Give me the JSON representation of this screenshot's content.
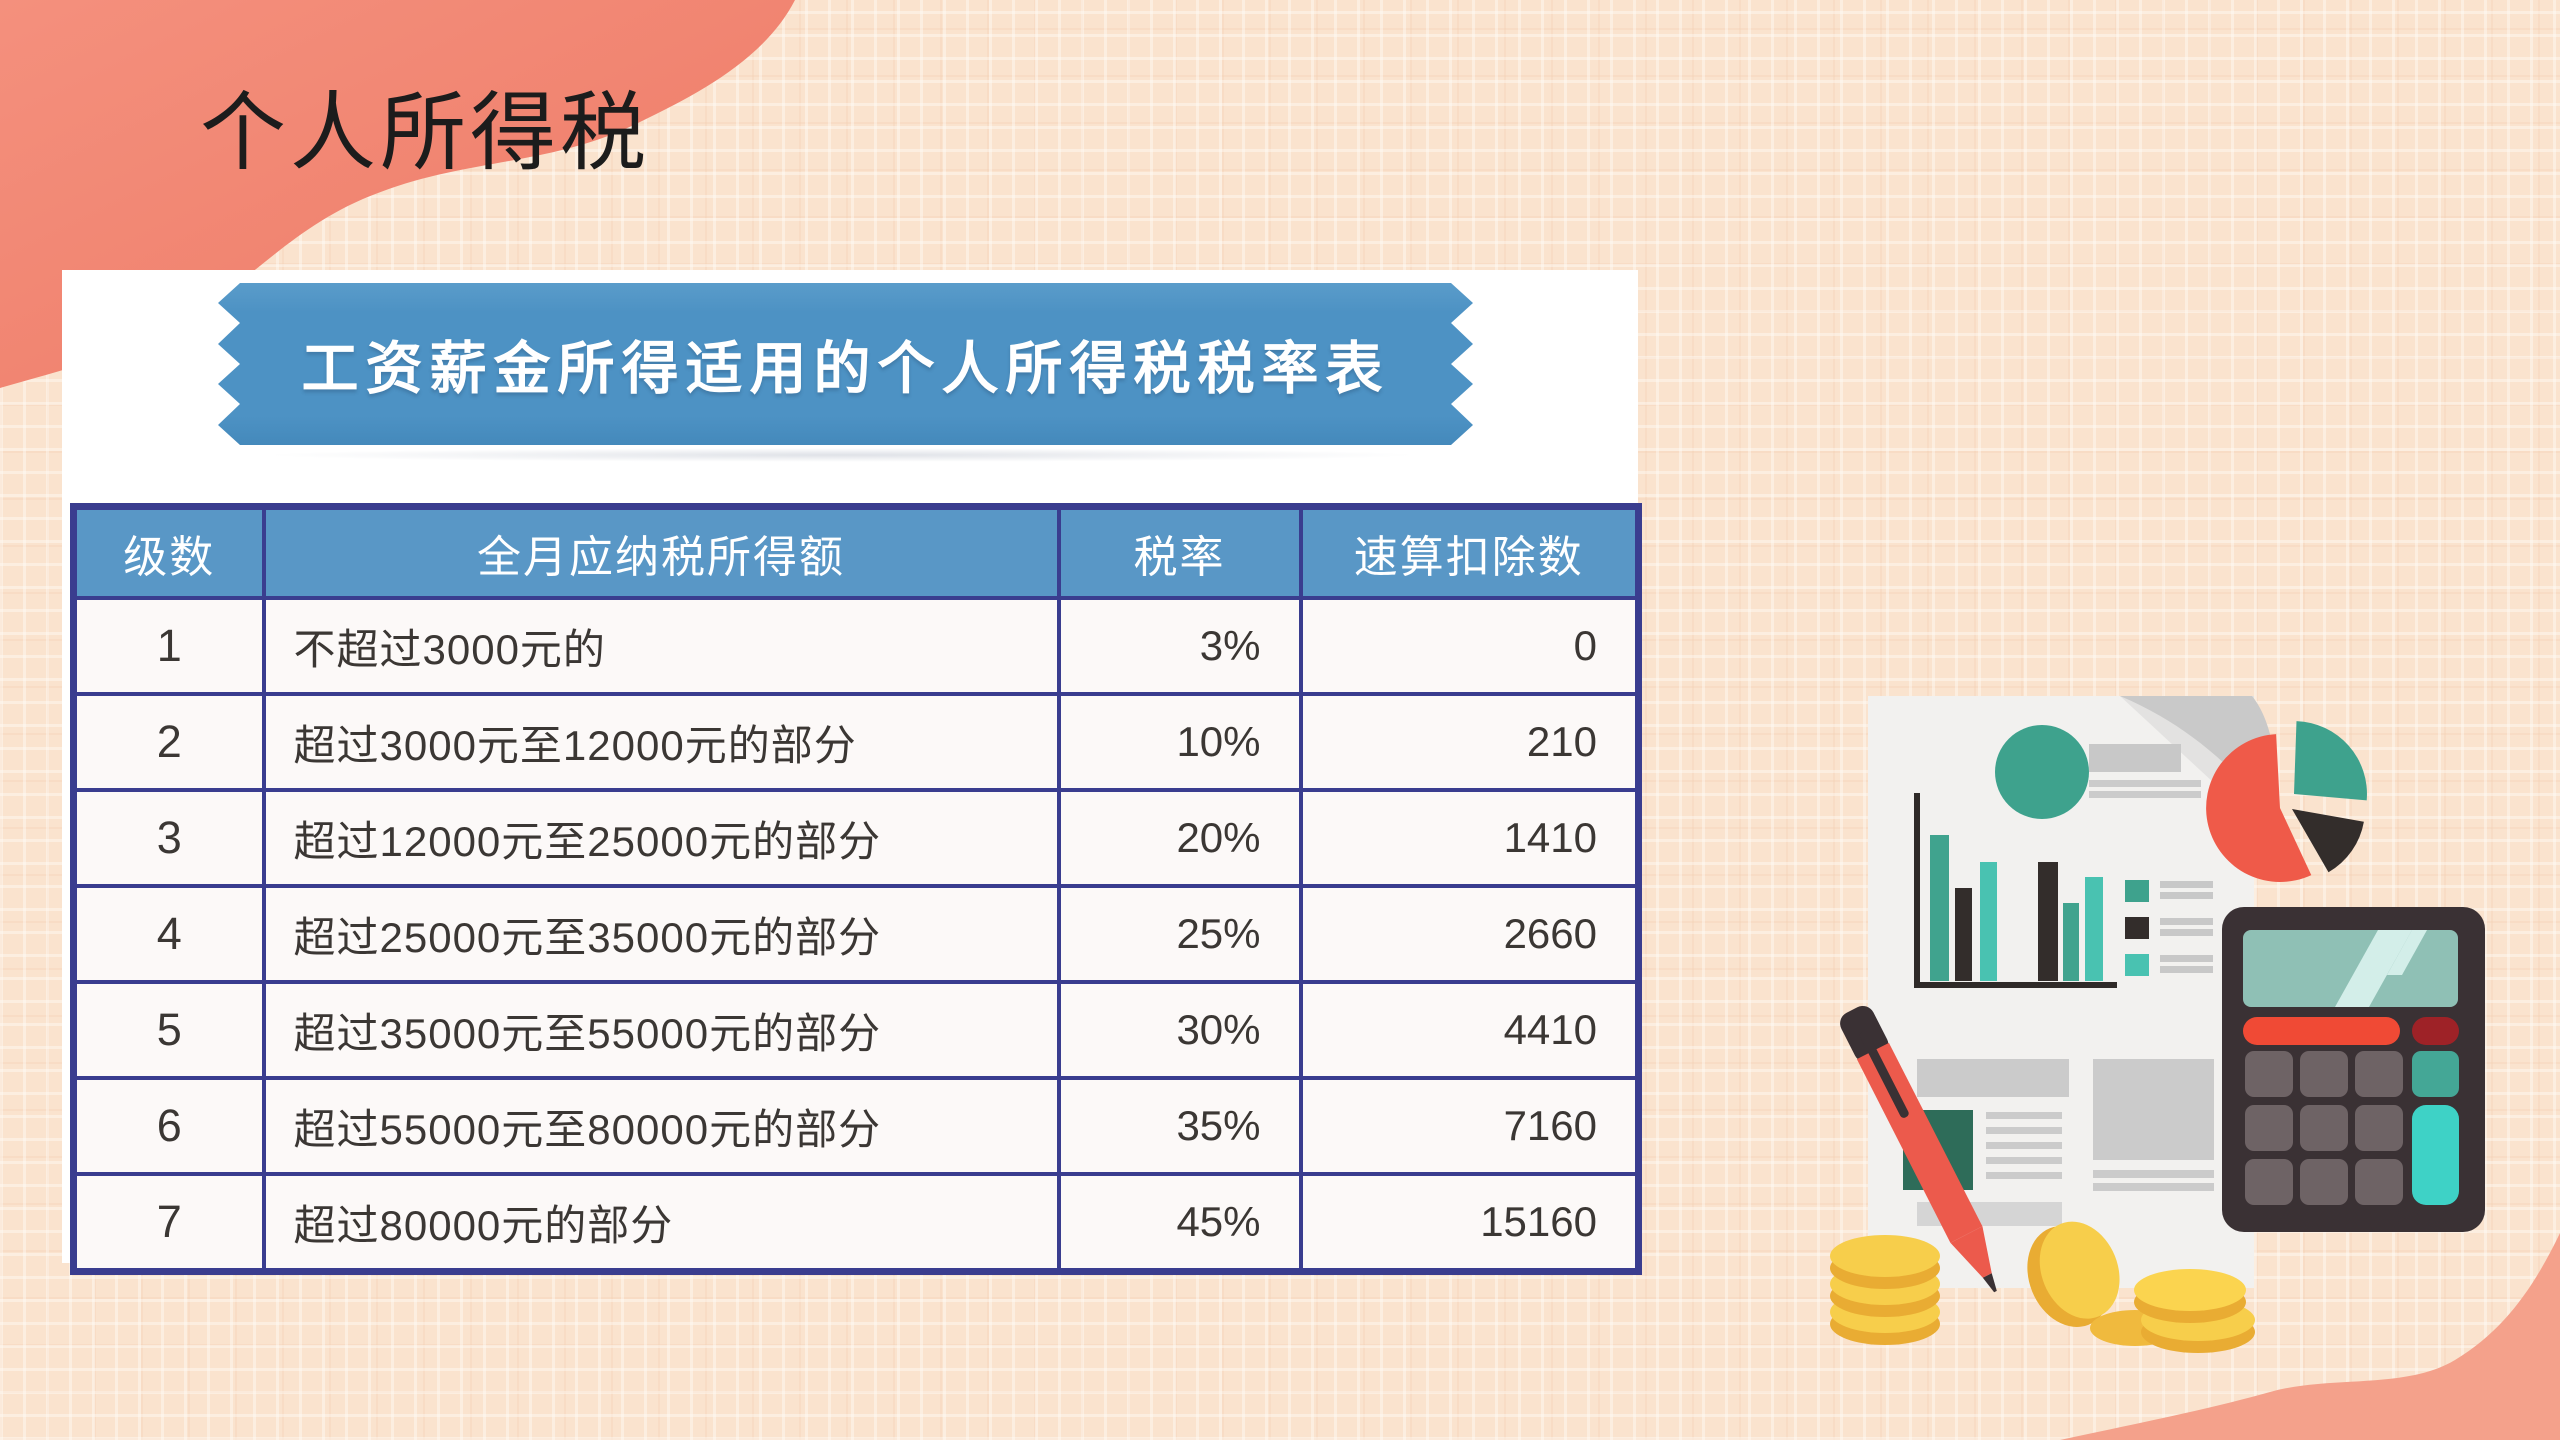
{
  "slide": {
    "title": "个人所得税"
  },
  "panel": {
    "banner_title": "工资薪金所得适用的个人所得税税率表",
    "table": {
      "columns": [
        "级数",
        "全月应纳税所得额",
        "税率",
        "速算扣除数"
      ],
      "rows": [
        [
          "1",
          "不超过3000元的",
          "3%",
          "0"
        ],
        [
          "2",
          "超过3000元至12000元的部分",
          "10%",
          "210"
        ],
        [
          "3",
          "超过12000元至25000元的部分",
          "20%",
          "1410"
        ],
        [
          "4",
          "超过25000元至35000元的部分",
          "25%",
          "2660"
        ],
        [
          "5",
          "超过35000元至55000元的部分",
          "30%",
          "4410"
        ],
        [
          "6",
          "超过55000元至80000元的部分",
          "35%",
          "7160"
        ],
        [
          "7",
          "超过80000元的部分",
          "45%",
          "15160"
        ]
      ]
    }
  },
  "illustration": {
    "parts": [
      "document",
      "bar-chart",
      "pie-chart",
      "calculator",
      "pen",
      "coins"
    ]
  },
  "colors": {
    "background": "#FAE3CE",
    "corner_blob_top_left": "#F1836F",
    "corner_blob_bottom_right": "#F4A18B",
    "banner_blue": "#4D92C4",
    "header_blue": "#5997C6",
    "table_border": "#3A3D8F",
    "cell_background": "#FCF9F8",
    "teal": "#3EA28D",
    "teal_bright": "#49C2B1",
    "red": "#EF5A49",
    "dark": "#332D2B",
    "gold": "#F7CE4B",
    "calculator_body": "#3A3134",
    "button_gray": "#6E6365",
    "button_teal": "#3ED2C6",
    "screen_green": "#8FC0B5",
    "pen_red": "#EC5A4C"
  }
}
